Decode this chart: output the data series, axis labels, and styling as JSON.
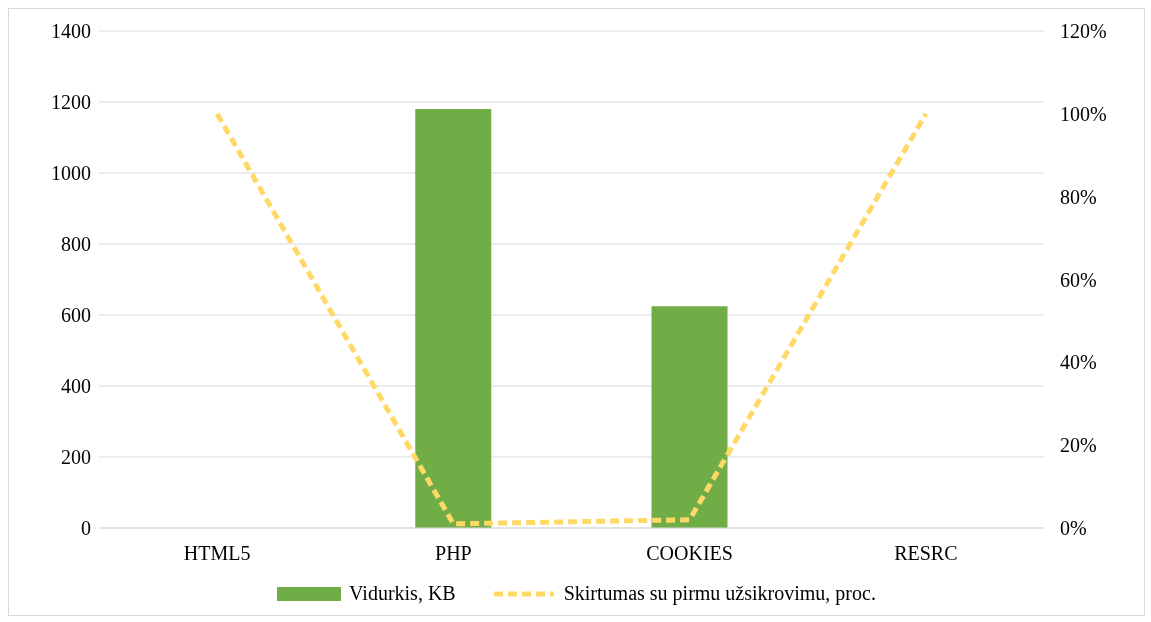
{
  "chart_data": {
    "type": "bar",
    "categories": [
      "HTML5",
      "PHP",
      "COOKIES",
      "RESRC"
    ],
    "series": [
      {
        "name": "Vidurkis, KB",
        "color": "#70ad47",
        "values": [
          0,
          1180,
          625,
          0
        ]
      },
      {
        "name": "Skirtumas su pirmu užsikrovimu, proc.",
        "type": "line",
        "axis": "y2",
        "color": "#ffd966",
        "line_style": "dashed",
        "marker": "none",
        "values": [
          100,
          1,
          2,
          100
        ]
      }
    ],
    "ylim": [
      0,
      1400
    ],
    "yticks": [
      0,
      200,
      400,
      600,
      800,
      1000,
      1200,
      1400
    ],
    "y2lim": [
      0,
      120
    ],
    "y2ticks": [
      {
        "value": 0,
        "label": "0%"
      },
      {
        "value": 20,
        "label": "20%"
      },
      {
        "value": 40,
        "label": "40%"
      },
      {
        "value": 60,
        "label": "60%"
      },
      {
        "value": 80,
        "label": "80%"
      },
      {
        "value": 100,
        "label": "100%"
      },
      {
        "value": 120,
        "label": "120%"
      }
    ],
    "grid": "y",
    "legend": "bottom"
  }
}
